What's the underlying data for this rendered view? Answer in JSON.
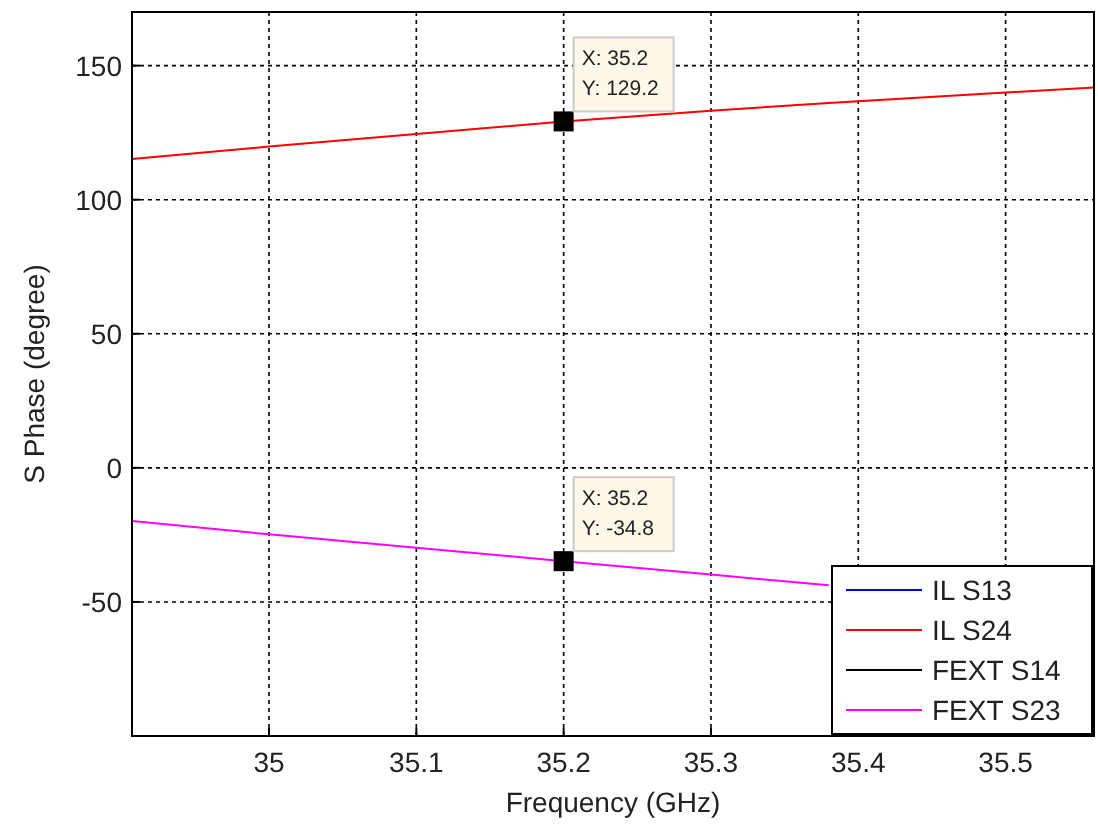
{
  "chart_data": {
    "type": "line",
    "xlabel": "Frequency (GHz)",
    "ylabel": "S Phase (degree)",
    "x": [
      34.907,
      35.0,
      35.1,
      35.2,
      35.3,
      35.38,
      35.5,
      35.56
    ],
    "series": [
      {
        "name": "IL S13",
        "color": "#0000ff",
        "values": [
          null,
          null,
          null,
          null,
          null,
          null,
          null,
          null
        ]
      },
      {
        "name": "IL S24",
        "color": "#ff0000",
        "values": [
          115.2,
          119.8,
          124.5,
          129.2,
          133.2,
          136.1,
          140.0,
          141.8
        ]
      },
      {
        "name": "FEXT S14",
        "color": "#000000",
        "values": [
          null,
          null,
          null,
          null,
          null,
          null,
          null,
          null
        ]
      },
      {
        "name": "FEXT S23",
        "color": "#ff00ff",
        "values": [
          -19.8,
          -24.8,
          -29.8,
          -34.8,
          -39.8,
          -43.8,
          null,
          null
        ]
      }
    ],
    "xlim": [
      34.907,
      35.56
    ],
    "xticks": [
      35,
      35.1,
      35.2,
      35.3,
      35.4,
      35.5
    ],
    "ylim": [
      -100,
      170
    ],
    "yticks": [
      -50,
      0,
      50,
      100,
      150
    ],
    "grid": true,
    "legend": "bottom right",
    "marker": "none",
    "line_style": "solid",
    "annotations": [
      {
        "text": "X: 35.2\nY: 129.2",
        "x": 35.2,
        "y": 129.2
      },
      {
        "text": "X: 35.2\nY: -34.8",
        "x": 35.2,
        "y": -34.8
      }
    ]
  }
}
